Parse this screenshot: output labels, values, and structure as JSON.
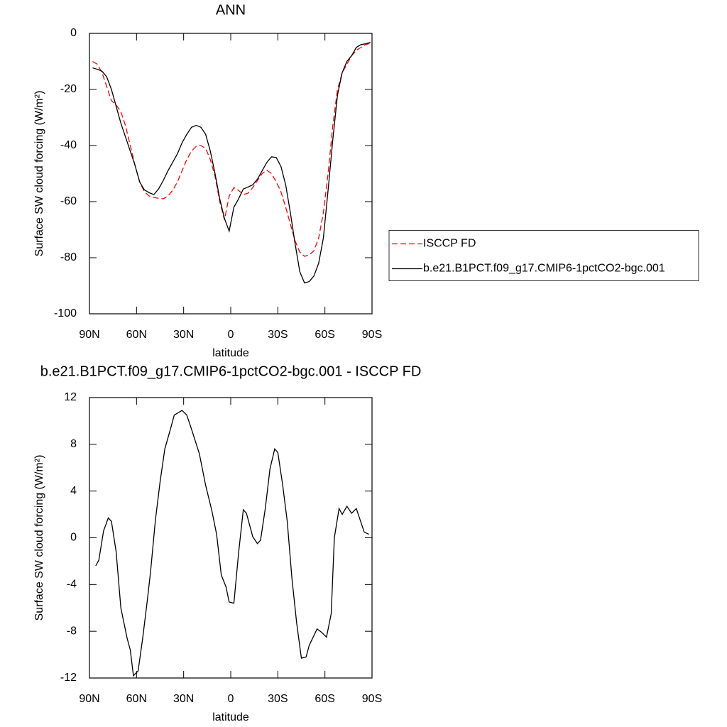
{
  "chart_data": [
    {
      "type": "line",
      "title": "ANN",
      "x_label": "latitude",
      "y_label": "Surface SW cloud forcing (W/m²)",
      "x": [
        88,
        85,
        82,
        79,
        76,
        73,
        70,
        67,
        64,
        61,
        58,
        55,
        52,
        49,
        46,
        43,
        40,
        37,
        34,
        31,
        28,
        25,
        22,
        19,
        16,
        13,
        10,
        7,
        4,
        1,
        -2,
        -5,
        -8,
        -11,
        -14,
        -17,
        -20,
        -23,
        -26,
        -29,
        -32,
        -35,
        -38,
        -41,
        -44,
        -47,
        -50,
        -53,
        -56,
        -59,
        -62,
        -65,
        -68,
        -71,
        -74,
        -77,
        -80,
        -83,
        -86,
        -89
      ],
      "series": [
        {
          "name": "ISCCP FD",
          "color": "#ff0000",
          "dashed": true,
          "values": [
            -10,
            -11,
            -14,
            -19,
            -24,
            -25.5,
            -28,
            -33,
            -40,
            -47,
            -53,
            -56.5,
            -58,
            -58.5,
            -58.8,
            -59,
            -58,
            -56,
            -53,
            -49,
            -45,
            -42,
            -40.3,
            -40,
            -41,
            -45,
            -51,
            -60,
            -66.5,
            -58,
            -55,
            -56,
            -57.5,
            -57,
            -55,
            -52.5,
            -50,
            -48.8,
            -50,
            -53,
            -56.5,
            -62,
            -68,
            -74,
            -78,
            -79.5,
            -79,
            -77.5,
            -73,
            -64,
            -50,
            -33,
            -20,
            -14,
            -11,
            -8,
            -6,
            -5,
            -4,
            -3.5
          ]
        },
        {
          "name": "b.e21.B1PCT.f09_g17.CMIP6-1pctCO2-bgc.001",
          "color": "#000000",
          "dashed": false,
          "values": [
            -12.3,
            -12.8,
            -13.5,
            -15.5,
            -20,
            -26,
            -32,
            -37,
            -42,
            -47,
            -53,
            -55.8,
            -56.8,
            -57.5,
            -55.5,
            -52.5,
            -49,
            -46,
            -43,
            -39,
            -36,
            -33.5,
            -32.8,
            -33.5,
            -36,
            -42,
            -50,
            -59,
            -66,
            -70.5,
            -62,
            -59,
            -55.5,
            -54.8,
            -54,
            -52,
            -49,
            -46,
            -44,
            -44.3,
            -47.5,
            -54,
            -64,
            -75,
            -85,
            -89,
            -88.5,
            -86.5,
            -82,
            -73,
            -56,
            -38,
            -22,
            -14,
            -10,
            -8,
            -5,
            -4,
            -3.7,
            -3.2
          ]
        }
      ],
      "xlim": [
        90,
        -90
      ],
      "xticks": [
        {
          "value": 90,
          "label": "90N"
        },
        {
          "value": 60,
          "label": "60N"
        },
        {
          "value": 30,
          "label": "30N"
        },
        0,
        {
          "value": -30,
          "label": "30S"
        },
        {
          "value": -60,
          "label": "60S"
        },
        {
          "value": -90,
          "label": "90S"
        }
      ],
      "ylim": [
        -100,
        0
      ],
      "yticks": [
        -100,
        -80,
        -60,
        -40,
        -20,
        0
      ],
      "legend": "right"
    },
    {
      "type": "line",
      "title": "b.e21.B1PCT.f09_g17.CMIP6-1pctCO2-bgc.001 - ISCCP FD",
      "x_label": "latitude",
      "y_label": "Surface SW cloud forcing (W/m²)",
      "x": [
        86,
        84,
        81,
        78,
        76,
        73,
        70,
        66,
        64,
        62,
        59,
        56,
        53,
        51,
        48,
        45,
        42,
        38,
        36,
        31,
        28,
        25,
        20,
        16,
        12,
        9,
        6,
        3,
        1,
        -2,
        -5,
        -8,
        -10,
        -14,
        -17,
        -19,
        -22,
        -25,
        -28,
        -30,
        -33,
        -36,
        -39,
        -42,
        -45,
        -48,
        -50,
        -55,
        -58,
        -61,
        -64,
        -66,
        -69,
        -71,
        -74,
        -77,
        -80,
        -85,
        -88
      ],
      "series": [
        {
          "color": "#000000",
          "dashed": false,
          "values": [
            -2.4,
            -1.9,
            0.6,
            1.7,
            1.4,
            -1.2,
            -6,
            -8.6,
            -9.6,
            -11.8,
            -11.4,
            -8.5,
            -5.2,
            -2.8,
            1.5,
            4.8,
            7.6,
            9.5,
            10.5,
            10.9,
            10.5,
            9.3,
            7.2,
            4.5,
            2.3,
            0.3,
            -3.2,
            -4.2,
            -5.5,
            -5.6,
            -1.3,
            2.4,
            2.1,
            0.1,
            -0.5,
            -0.2,
            2.5,
            5.9,
            7.6,
            7.3,
            4.6,
            1.4,
            -3.5,
            -7.3,
            -10.3,
            -10.2,
            -9.2,
            -7.8,
            -8.1,
            -8.5,
            -6.5,
            0,
            2.5,
            2,
            2.7,
            2.1,
            2.5,
            0.5,
            0.3
          ]
        }
      ],
      "xlim": [
        90,
        -90
      ],
      "xticks": [
        {
          "value": 90,
          "label": "90N"
        },
        {
          "value": 60,
          "label": "60N"
        },
        {
          "value": 30,
          "label": "30N"
        },
        0,
        {
          "value": -30,
          "label": "30S"
        },
        {
          "value": -60,
          "label": "60S"
        },
        {
          "value": -90,
          "label": "90S"
        }
      ],
      "ylim": [
        -12,
        12
      ],
      "yticks": [
        -12,
        -8,
        -4,
        0,
        4,
        8,
        12
      ]
    }
  ]
}
